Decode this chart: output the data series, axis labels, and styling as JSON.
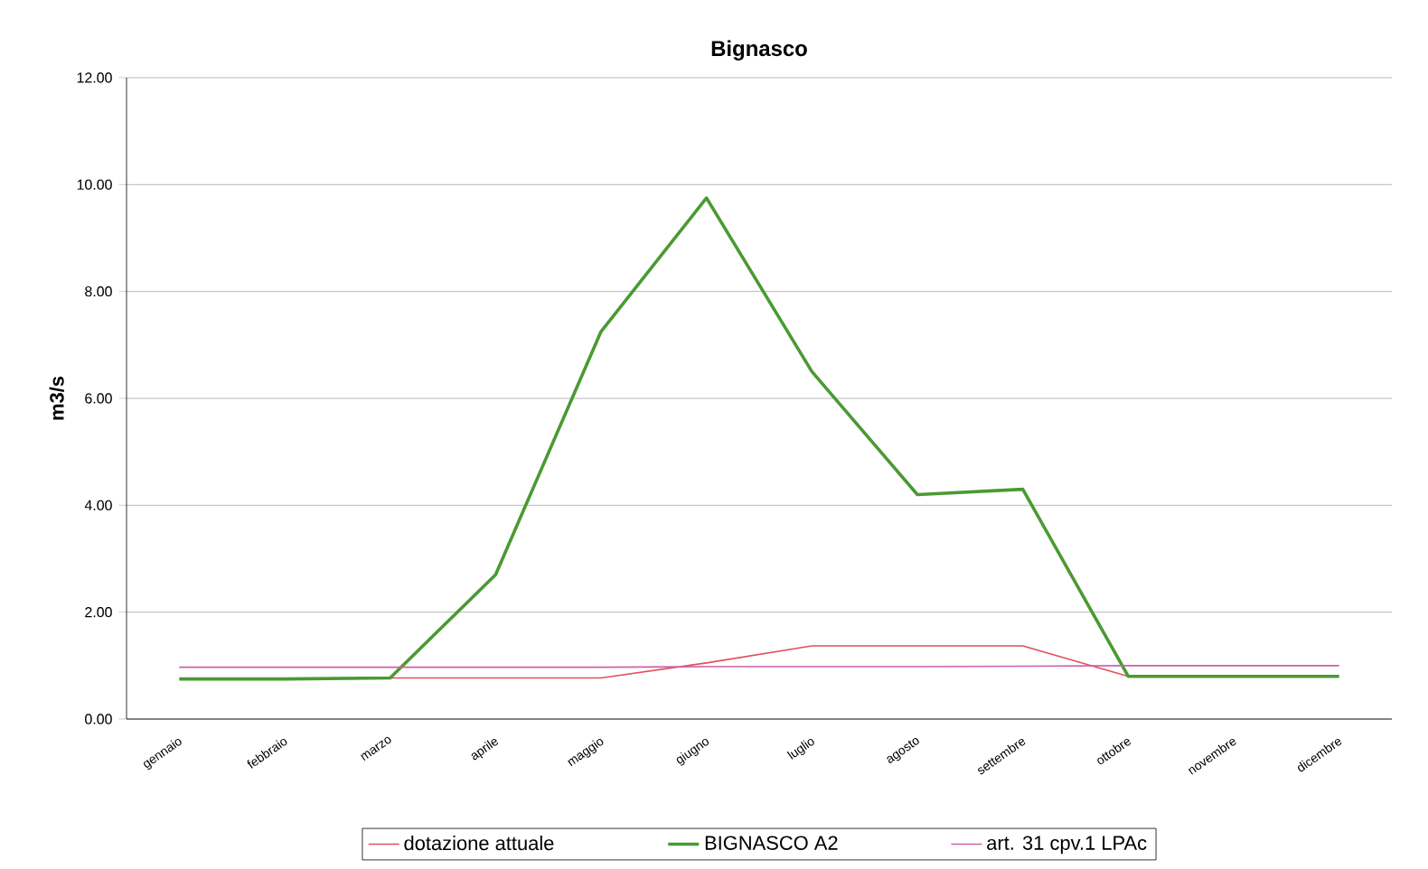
{
  "chart_data": {
    "type": "line",
    "title": "Bignasco",
    "ylabel": "m3/s",
    "categories": [
      "gennaio",
      "febbraio",
      "marzo",
      "aprile",
      "maggio",
      "giugno",
      "luglio",
      "agosto",
      "settembre",
      "ottobre",
      "novembre",
      "dicembre"
    ],
    "series": [
      {
        "name": "dotazione attuale",
        "color": "#e0505a",
        "values": [
          null,
          null,
          0.77,
          0.77,
          0.77,
          1.05,
          1.37,
          1.37,
          1.37,
          0.8,
          null,
          null
        ]
      },
      {
        "name": "BIGNASCO A2",
        "color": "#4a9a32",
        "values": [
          0.75,
          0.75,
          0.77,
          2.7,
          7.25,
          9.75,
          6.5,
          4.2,
          4.3,
          0.8,
          0.8,
          0.8
        ]
      },
      {
        "name": "art. 31 cpv.1 LPAc",
        "color": "#d060a8",
        "values": [
          0.97,
          0.97,
          0.97,
          0.97,
          0.97,
          0.98,
          0.98,
          0.98,
          0.99,
          1.0,
          1.0,
          1.0
        ]
      }
    ],
    "ylim": [
      0,
      12
    ],
    "yticks": [
      {
        "value": 0,
        "label": "0.00"
      },
      {
        "value": 2,
        "label": "2.00"
      },
      {
        "value": 4,
        "label": "4.00"
      },
      {
        "value": 6,
        "label": "6.00"
      },
      {
        "value": 8,
        "label": "8.00"
      },
      {
        "value": 10,
        "label": "10.00"
      },
      {
        "value": 12,
        "label": "12.00"
      }
    ],
    "grid": "y",
    "legend": "bottom",
    "marker": "none",
    "line_style": "solid"
  }
}
